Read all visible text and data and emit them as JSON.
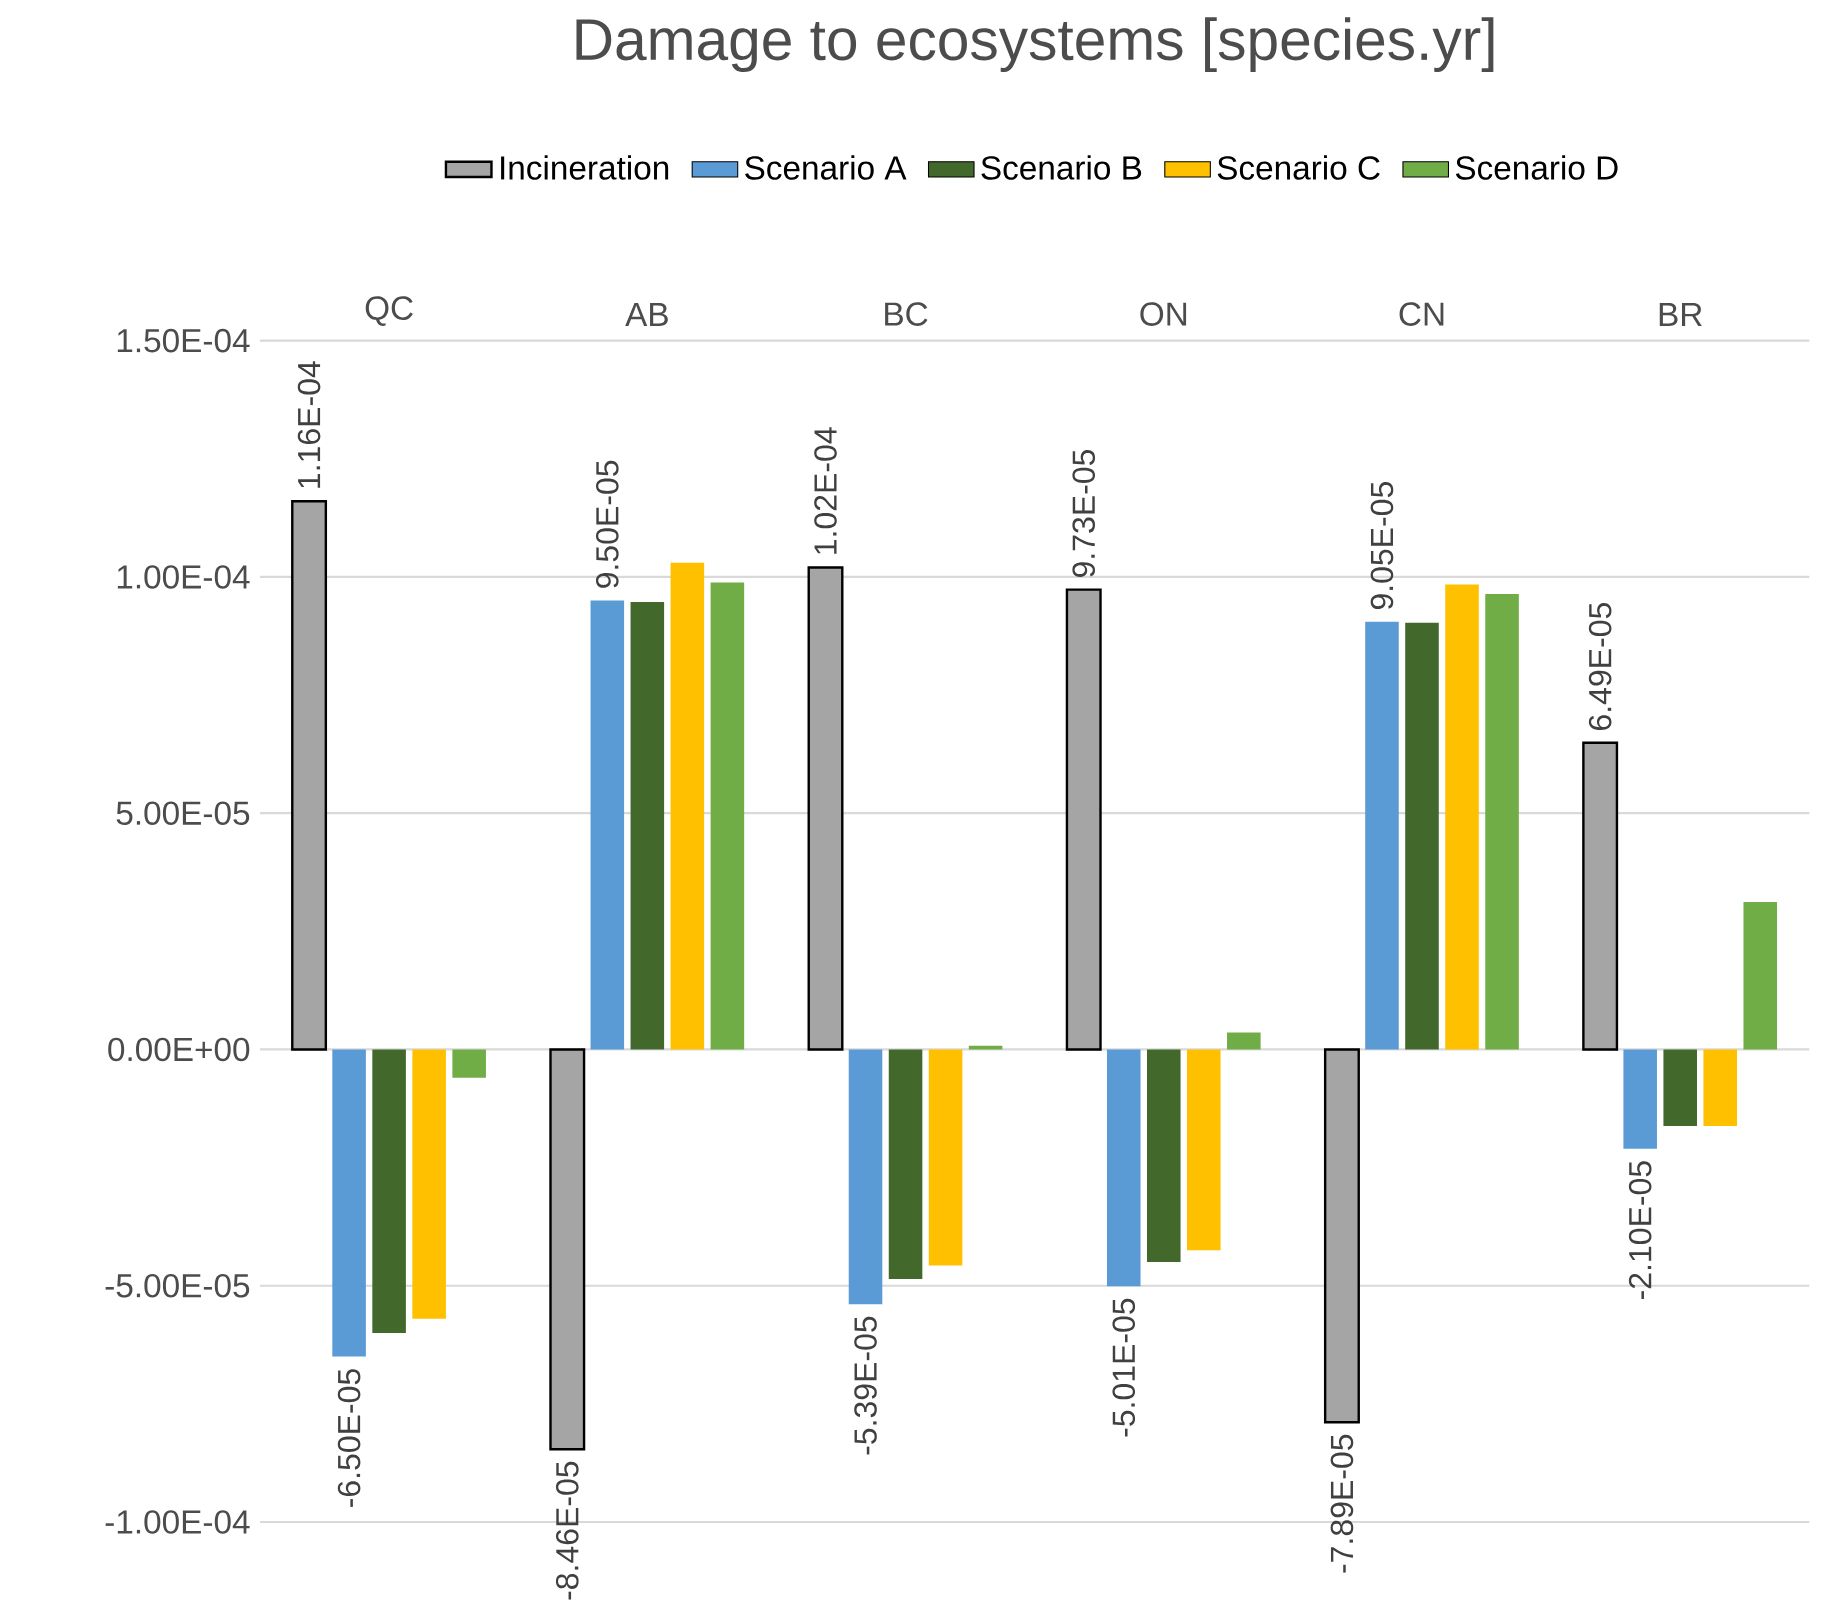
{
  "chart_data": {
    "type": "bar",
    "title": "Damage to ecosystems [species.yr]",
    "categories": [
      "QC",
      "AB",
      "BC",
      "ON",
      "CN",
      "BR"
    ],
    "series": [
      {
        "name": "Incineration",
        "color": "#a5a5a5",
        "values": [
          0.000116,
          -8.46e-05,
          0.000102,
          9.73e-05,
          -7.89e-05,
          6.49e-05
        ],
        "value_labels": [
          "1.16E-04",
          "-8.46E-05",
          "1.02E-04",
          "9.73E-05",
          "-7.89E-05",
          "6.49E-05"
        ]
      },
      {
        "name": "Scenario A",
        "color": "#5b9bd5",
        "values": [
          -6.5e-05,
          9.5e-05,
          -5.39e-05,
          -5.01e-05,
          9.05e-05,
          -2.1e-05
        ],
        "value_labels": [
          "-6.50E-05",
          "9.50E-05",
          "-5.39E-05",
          "-5.01E-05",
          "9.05E-05",
          "-2.10E-05"
        ]
      },
      {
        "name": "Scenario B",
        "color": "#43682b",
        "values": [
          -6e-05,
          9.47e-05,
          -4.86e-05,
          -4.5e-05,
          9.03e-05,
          -1.62e-05
        ]
      },
      {
        "name": "Scenario C",
        "color": "#ffc000",
        "values": [
          -5.7e-05,
          0.000103,
          -4.57e-05,
          -4.25e-05,
          9.84e-05,
          -1.62e-05
        ]
      },
      {
        "name": "Scenario D",
        "color": "#70ad47",
        "values": [
          -6e-06,
          9.88e-05,
          8e-07,
          3.6e-06,
          9.64e-05,
          3.12e-05
        ]
      }
    ],
    "ylim": [
      -0.0001,
      0.00015
    ],
    "yticks": [
      {
        "value": -0.0001,
        "label": "-1.00E-04"
      },
      {
        "value": -5e-05,
        "label": "-5.00E-05"
      },
      {
        "value": 0,
        "label": "0.00E+00"
      },
      {
        "value": 5e-05,
        "label": "5.00E-05"
      },
      {
        "value": 0.0001,
        "label": "1.00E-04"
      },
      {
        "value": 0.00015,
        "label": "1.50E-04"
      }
    ],
    "grid": "y",
    "legend": "top"
  }
}
